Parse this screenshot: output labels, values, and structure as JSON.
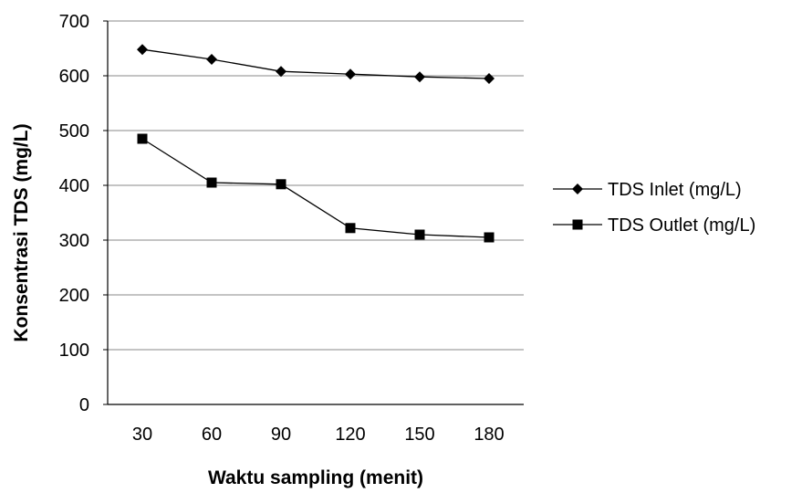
{
  "chart_data": {
    "type": "line",
    "title": "",
    "xlabel": "Waktu sampling (menit)",
    "ylabel": "Konsentrasi TDS (mg/L)",
    "categories": [
      "30",
      "60",
      "90",
      "120",
      "150",
      "180"
    ],
    "ylim": [
      0,
      700
    ],
    "yticks": [
      "0",
      "100",
      "200",
      "300",
      "400",
      "500",
      "600",
      "700"
    ],
    "grid": true,
    "legend_position": "right",
    "series": [
      {
        "name": "TDS Inlet (mg/L)",
        "marker": "diamond",
        "color": "#000000",
        "values": [
          648,
          630,
          608,
          603,
          598,
          595
        ]
      },
      {
        "name": "TDS Outlet (mg/L)",
        "marker": "square",
        "color": "#000000",
        "values": [
          485,
          405,
          402,
          322,
          310,
          305
        ]
      }
    ]
  }
}
